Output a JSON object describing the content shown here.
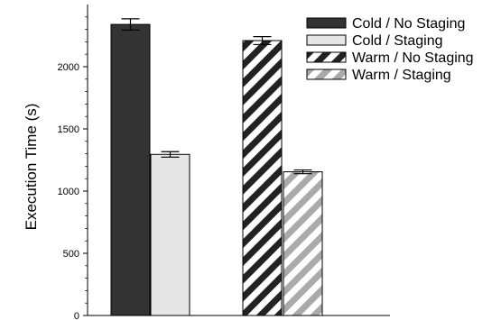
{
  "chart_data": {
    "type": "bar",
    "ylabel": "Execution Time (s)",
    "ylim": [
      0,
      2500
    ],
    "yticks": [
      0,
      500,
      1000,
      1500,
      2000
    ],
    "grid": false,
    "legend_position": "top-right",
    "series": [
      {
        "name": "Cold / No Staging",
        "value": 2340,
        "error": 45,
        "fill": "#333333",
        "pattern": "solid"
      },
      {
        "name": "Cold / Staging",
        "value": 1295,
        "error": 22,
        "fill": "#e6e6e6",
        "pattern": "solid"
      },
      {
        "name": "Warm / No Staging",
        "value": 2210,
        "error": 32,
        "fill": "#222222",
        "pattern": "hatch"
      },
      {
        "name": "Warm / Staging",
        "value": 1155,
        "error": 15,
        "fill": "#aaaaaa",
        "pattern": "hatch"
      }
    ]
  }
}
